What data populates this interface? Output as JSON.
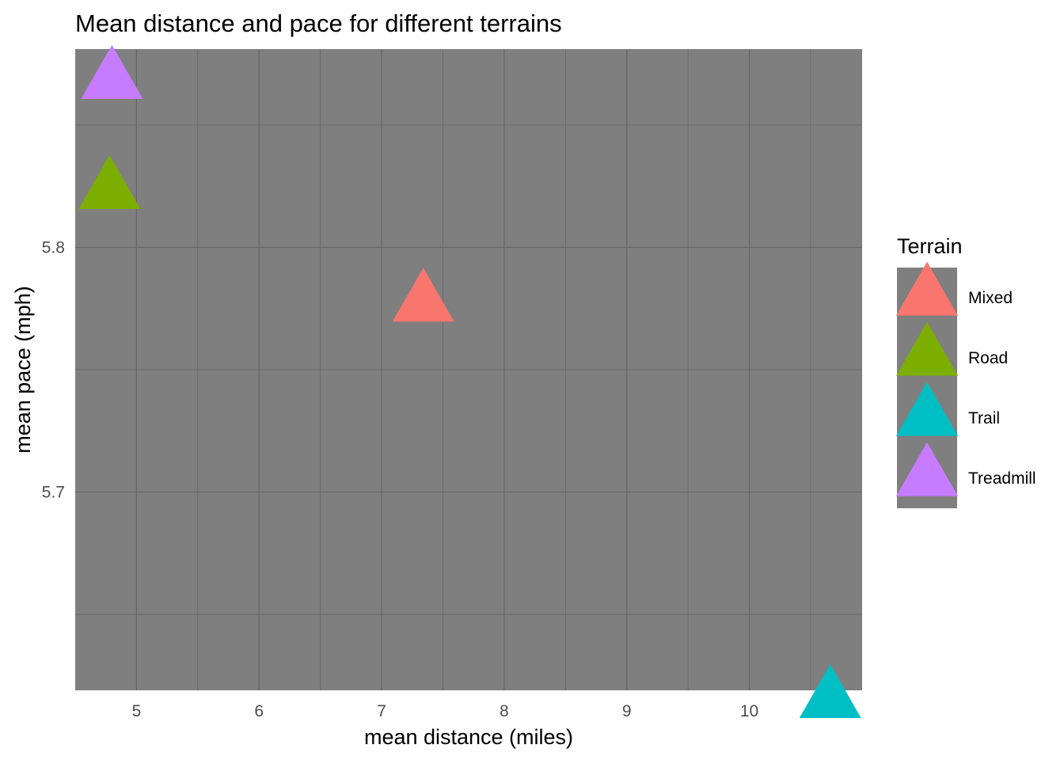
{
  "chart_data": {
    "type": "scatter",
    "title": "Mean distance and pace for different terrains",
    "xlabel": "mean distance (miles)",
    "ylabel": "mean pace (mph)",
    "xlim": [
      4.5,
      10.92
    ],
    "ylim": [
      5.619,
      5.881
    ],
    "xticks": [
      5,
      6,
      7,
      8,
      9,
      10
    ],
    "xticklabels": [
      "5",
      "6",
      "7",
      "8",
      "9",
      "10"
    ],
    "xminor": [
      5.5,
      6.5,
      7.5,
      8.5,
      9.5,
      10.5
    ],
    "yticks": [
      5.7,
      5.8
    ],
    "yticklabels": [
      "5.7",
      "5.8"
    ],
    "yminor": [
      5.65,
      5.75,
      5.85
    ],
    "grid": true,
    "panel_background": "#7f7f7f",
    "grid_color": "#666666",
    "marker": "triangle",
    "legend": {
      "title": "Terrain",
      "position": "right",
      "background": "#7f7f7f"
    },
    "series": [
      {
        "name": "Mixed",
        "color": "#F8766D",
        "x": 7.34,
        "y": 5.777
      },
      {
        "name": "Road",
        "color": "#7CAE00",
        "x": 4.78,
        "y": 5.823
      },
      {
        "name": "Trail",
        "color": "#00BFC4",
        "x": 10.66,
        "y": 5.615
      },
      {
        "name": "Treadmill",
        "color": "#C77CFF",
        "x": 4.8,
        "y": 5.868
      }
    ]
  }
}
